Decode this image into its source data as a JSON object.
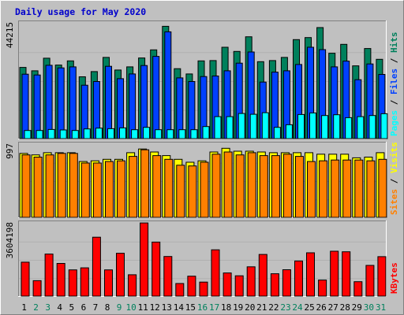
{
  "chart_data": {
    "type": "bar",
    "title": "Daily usage for May 2020",
    "categories": [
      "1",
      "2",
      "3",
      "4",
      "5",
      "6",
      "7",
      "8",
      "9",
      "10",
      "11",
      "12",
      "13",
      "14",
      "15",
      "16",
      "17",
      "18",
      "19",
      "20",
      "21",
      "22",
      "23",
      "24",
      "25",
      "26",
      "27",
      "28",
      "29",
      "30",
      "31"
    ],
    "weekend_days": [
      "2",
      "3",
      "9",
      "10",
      "16",
      "17",
      "23",
      "24",
      "30",
      "31"
    ],
    "panels": [
      {
        "id": "hits-files-pages",
        "ymax": 44215,
        "ymax_label": "44215",
        "side_labels": [
          "Pages",
          "Files",
          "Hits"
        ],
        "series": [
          {
            "name": "Hits",
            "color": "#00805c",
            "values": [
              27200,
              25900,
              30700,
              28100,
              29700,
              23600,
              25600,
              31000,
              26200,
              27400,
              30800,
              33900,
              42900,
              26700,
              24700,
              29700,
              29800,
              34900,
              33300,
              38900,
              29400,
              29800,
              31000,
              37800,
              38600,
              42400,
              32600,
              36000,
              27800,
              34400,
              30300
            ]
          },
          {
            "name": "Files",
            "color": "#0040ff",
            "values": [
              24600,
              24300,
              28000,
              27000,
              27400,
              20400,
              21800,
              27600,
              22900,
              24700,
              27900,
              31400,
              40800,
              23200,
              21800,
              23700,
              23900,
              25900,
              28800,
              33100,
              21600,
              25400,
              25900,
              28300,
              34900,
              34000,
              27400,
              29600,
              22500,
              28500,
              24500
            ]
          },
          {
            "name": "Pages",
            "color": "#00ffff",
            "values": [
              3100,
              3100,
              3500,
              3300,
              3100,
              3700,
              4000,
              3800,
              4100,
              3400,
              4300,
              3400,
              3400,
              3400,
              3400,
              4600,
              8400,
              8400,
              9600,
              9300,
              9900,
              4300,
              5300,
              9200,
              9800,
              8800,
              9100,
              8000,
              8400,
              8800,
              9500
            ]
          }
        ]
      },
      {
        "id": "visits-sites",
        "ymax": 997,
        "ymax_label": "997",
        "side_labels": [
          "Sites",
          "Visits"
        ],
        "series": [
          {
            "name": "Visits",
            "color": "#ffff00",
            "values": [
              870,
              850,
              880,
              880,
              880,
              760,
              770,
              790,
              790,
              880,
              930,
              890,
              840,
              790,
              750,
              770,
              890,
              940,
              900,
              900,
              890,
              880,
              880,
              880,
              880,
              860,
              860,
              860,
              810,
              820,
              880
            ]
          },
          {
            "name": "Sites",
            "color": "#ff8000",
            "values": [
              850,
              820,
              850,
              870,
              870,
              740,
              740,
              760,
              770,
              830,
              920,
              840,
              790,
              710,
              700,
              750,
              860,
              890,
              850,
              880,
              840,
              840,
              860,
              830,
              760,
              770,
              780,
              780,
              780,
              770,
              790
            ]
          }
        ]
      },
      {
        "id": "kbytes",
        "ymax": 3604198,
        "ymax_label": "3604198",
        "side_labels": [
          "KBytes"
        ],
        "series": [
          {
            "name": "KBytes",
            "color": "#ff0000",
            "values": [
              1670000,
              760000,
              2070000,
              1610000,
              1290000,
              1390000,
              2900000,
              1290000,
              2110000,
              1050000,
              3600000,
              2660000,
              1950000,
              620000,
              980000,
              690000,
              2280000,
              1140000,
              1000000,
              1440000,
              2050000,
              1100000,
              1300000,
              1730000,
              2130000,
              790000,
              2210000,
              2180000,
              710000,
              1510000,
              1940000
            ]
          }
        ]
      }
    ]
  }
}
